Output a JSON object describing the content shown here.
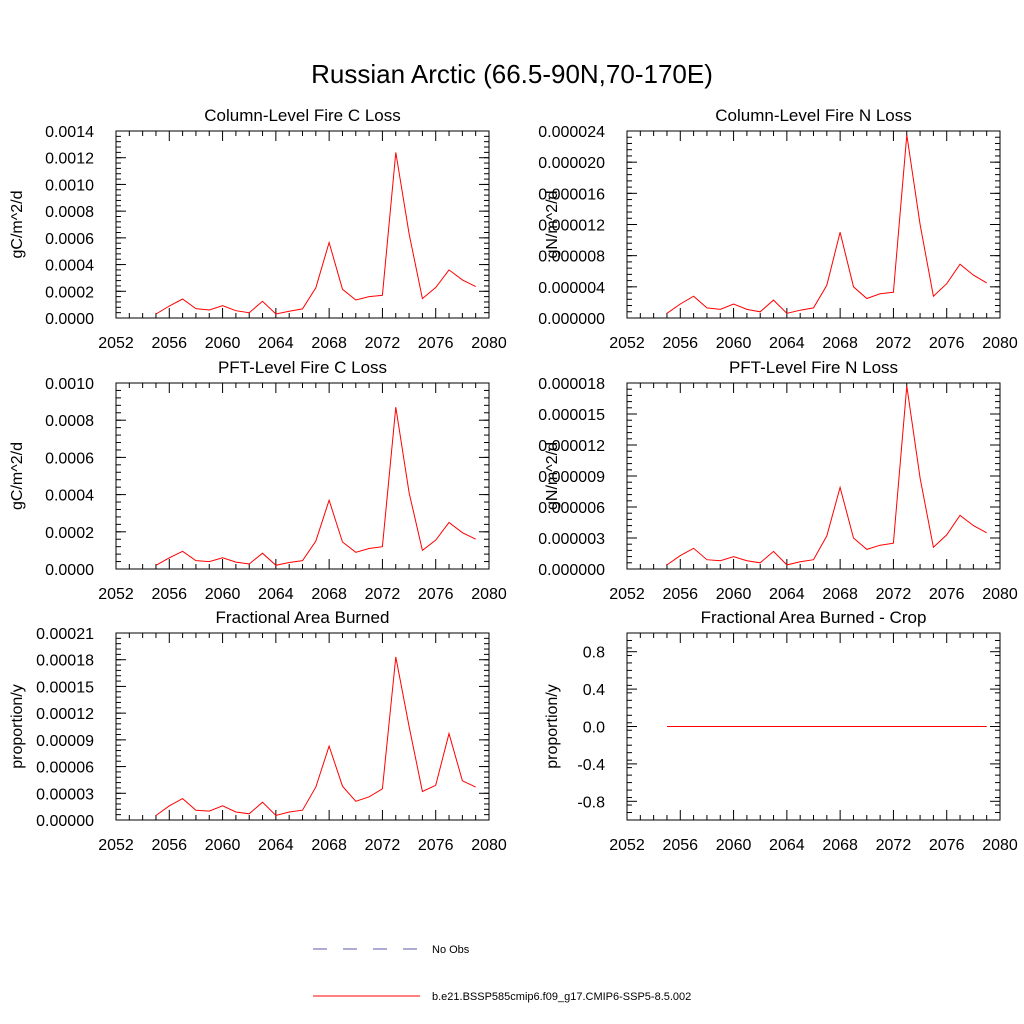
{
  "figure": {
    "title": "Russian Arctic (66.5-90N,70-170E)",
    "legend": [
      {
        "label": "No Obs",
        "color": "#5a5aa8",
        "style": "dashed"
      },
      {
        "label": "b.e21.BSSP585cmip6.f09_g17.CMIP6-SSP5-8.5.002",
        "color": "#ff0000",
        "style": "solid"
      }
    ]
  },
  "chart_data": [
    {
      "type": "line",
      "title": "Column-Level Fire C Loss",
      "xlabel": "",
      "ylabel": "gC/m^2/d",
      "xlim": [
        2052,
        2080
      ],
      "ylim": [
        0,
        0.0014
      ],
      "xticks": [
        "2052",
        "2056",
        "2060",
        "2064",
        "2068",
        "2072",
        "2076",
        "2080"
      ],
      "yticks": [
        "0.0000",
        "0.0002",
        "0.0004",
        "0.0006",
        "0.0008",
        "0.0010",
        "0.0012",
        "0.0014"
      ],
      "x": [
        2055,
        2056,
        2057,
        2058,
        2059,
        2060,
        2061,
        2062,
        2063,
        2064,
        2065,
        2066,
        2067,
        2068,
        2069,
        2070,
        2071,
        2072,
        2073,
        2074,
        2075,
        2076,
        2077,
        2078,
        2079
      ],
      "series": [
        {
          "color": "#ff0000",
          "values": [
            3e-05,
            9e-05,
            0.000142,
            7e-05,
            6e-05,
            9.2e-05,
            5.5e-05,
            4e-05,
            0.000125,
            3e-05,
            5e-05,
            6.8e-05,
            0.000225,
            0.000565,
            0.000215,
            0.000135,
            0.00016,
            0.00017,
            0.00124,
            0.00063,
            0.000145,
            0.000228,
            0.00036,
            0.000285,
            0.000235
          ]
        }
      ]
    },
    {
      "type": "line",
      "title": "Column-Level Fire N Loss",
      "xlabel": "",
      "ylabel": "gN/m^2/d",
      "xlim": [
        2052,
        2080
      ],
      "ylim": [
        0,
        2.4e-05
      ],
      "xticks": [
        "2052",
        "2056",
        "2060",
        "2064",
        "2068",
        "2072",
        "2076",
        "2080"
      ],
      "yticks": [
        "0.000000",
        "0.000004",
        "0.000008",
        "0.000012",
        "0.000016",
        "0.000020",
        "0.000024"
      ],
      "x": [
        2055,
        2056,
        2057,
        2058,
        2059,
        2060,
        2061,
        2062,
        2063,
        2064,
        2065,
        2066,
        2067,
        2068,
        2069,
        2070,
        2071,
        2072,
        2073,
        2074,
        2075,
        2076,
        2077,
        2078,
        2079
      ],
      "series": [
        {
          "color": "#ff0000",
          "values": [
            6e-07,
            1.8e-06,
            2.8e-06,
            1.3e-06,
            1.1e-06,
            1.8e-06,
            1.1e-06,
            8e-07,
            2.3e-06,
            6e-07,
            1e-06,
            1.3e-06,
            4.2e-06,
            1.1e-05,
            4e-06,
            2.5e-06,
            3.1e-06,
            3.3e-06,
            2.35e-05,
            1.2e-05,
            2.8e-06,
            4.4e-06,
            6.9e-06,
            5.5e-06,
            4.5e-06
          ]
        }
      ]
    },
    {
      "type": "line",
      "title": "PFT-Level Fire C Loss",
      "xlabel": "",
      "ylabel": "gC/m^2/d",
      "xlim": [
        2052,
        2080
      ],
      "ylim": [
        0,
        0.001
      ],
      "xticks": [
        "2052",
        "2056",
        "2060",
        "2064",
        "2068",
        "2072",
        "2076",
        "2080"
      ],
      "yticks": [
        "0.0000",
        "0.0002",
        "0.0004",
        "0.0006",
        "0.0008",
        "0.0010"
      ],
      "x": [
        2055,
        2056,
        2057,
        2058,
        2059,
        2060,
        2061,
        2062,
        2063,
        2064,
        2065,
        2066,
        2067,
        2068,
        2069,
        2070,
        2071,
        2072,
        2073,
        2074,
        2075,
        2076,
        2077,
        2078,
        2079
      ],
      "series": [
        {
          "color": "#ff0000",
          "values": [
            2e-05,
            6e-05,
            9.5e-05,
            4.5e-05,
            4e-05,
            6e-05,
            3.7e-05,
            2.7e-05,
            8.5e-05,
            2e-05,
            3.5e-05,
            4.5e-05,
            0.00015,
            0.00037,
            0.000145,
            9e-05,
            0.00011,
            0.00012,
            0.00087,
            0.00041,
            0.0001,
            0.000155,
            0.00025,
            0.000195,
            0.00016
          ]
        }
      ]
    },
    {
      "type": "line",
      "title": "PFT-Level Fire N Loss",
      "xlabel": "",
      "ylabel": "gN/m^2/d",
      "xlim": [
        2052,
        2080
      ],
      "ylim": [
        0,
        1.8e-05
      ],
      "xticks": [
        "2052",
        "2056",
        "2060",
        "2064",
        "2068",
        "2072",
        "2076",
        "2080"
      ],
      "yticks": [
        "0.000000",
        "0.000003",
        "0.000006",
        "0.000009",
        "0.000012",
        "0.000015",
        "0.000018"
      ],
      "x": [
        2055,
        2056,
        2057,
        2058,
        2059,
        2060,
        2061,
        2062,
        2063,
        2064,
        2065,
        2066,
        2067,
        2068,
        2069,
        2070,
        2071,
        2072,
        2073,
        2074,
        2075,
        2076,
        2077,
        2078,
        2079
      ],
      "series": [
        {
          "color": "#ff0000",
          "values": [
            4e-07,
            1.3e-06,
            2e-06,
            9e-07,
            8e-07,
            1.2e-06,
            8e-07,
            6e-07,
            1.7e-06,
            4e-07,
            7e-07,
            9e-07,
            3.2e-06,
            7.9e-06,
            3e-06,
            1.9e-06,
            2.3e-06,
            2.5e-06,
            1.77e-05,
            8.8e-06,
            2.1e-06,
            3.3e-06,
            5.2e-06,
            4.2e-06,
            3.5e-06
          ]
        }
      ]
    },
    {
      "type": "line",
      "title": "Fractional Area Burned",
      "xlabel": "",
      "ylabel": "proportion/y",
      "xlim": [
        2052,
        2080
      ],
      "ylim": [
        0,
        0.00021
      ],
      "xticks": [
        "2052",
        "2056",
        "2060",
        "2064",
        "2068",
        "2072",
        "2076",
        "2080"
      ],
      "yticks": [
        "0.00000",
        "0.00003",
        "0.00006",
        "0.00009",
        "0.00012",
        "0.00015",
        "0.00018",
        "0.00021"
      ],
      "x": [
        2055,
        2056,
        2057,
        2058,
        2059,
        2060,
        2061,
        2062,
        2063,
        2064,
        2065,
        2066,
        2067,
        2068,
        2069,
        2070,
        2071,
        2072,
        2073,
        2074,
        2075,
        2076,
        2077,
        2078,
        2079
      ],
      "series": [
        {
          "color": "#ff0000",
          "values": [
            5e-06,
            1.6e-05,
            2.4e-05,
            1.1e-05,
            1e-05,
            1.6e-05,
            9e-06,
            7e-06,
            2e-05,
            5e-06,
            9e-06,
            1.1e-05,
            3.7e-05,
            8.3e-05,
            3.8e-05,
            2.1e-05,
            2.6e-05,
            3.5e-05,
            0.000183,
            0.000105,
            3.2e-05,
            3.9e-05,
            9.7e-05,
            4.4e-05,
            3.7e-05
          ]
        }
      ]
    },
    {
      "type": "line",
      "title": "Fractional Area Burned - Crop",
      "xlabel": "",
      "ylabel": "proportion/y",
      "xlim": [
        2052,
        2080
      ],
      "ylim": [
        -1,
        1
      ],
      "xticks": [
        "2052",
        "2056",
        "2060",
        "2064",
        "2068",
        "2072",
        "2076",
        "2080"
      ],
      "yticks": [
        "-0.8",
        "-0.4",
        "0.0",
        "0.4",
        "0.8"
      ],
      "ytick_values": [
        -0.8,
        -0.4,
        0,
        0.4,
        0.8
      ],
      "x": [
        2055,
        2056,
        2057,
        2058,
        2059,
        2060,
        2061,
        2062,
        2063,
        2064,
        2065,
        2066,
        2067,
        2068,
        2069,
        2070,
        2071,
        2072,
        2073,
        2074,
        2075,
        2076,
        2077,
        2078,
        2079
      ],
      "series": [
        {
          "color": "#ff0000",
          "values": [
            0,
            0,
            0,
            0,
            0,
            0,
            0,
            0,
            0,
            0,
            0,
            0,
            0,
            0,
            0,
            0,
            0,
            0,
            0,
            0,
            0,
            0,
            0,
            0,
            0
          ]
        }
      ]
    }
  ]
}
